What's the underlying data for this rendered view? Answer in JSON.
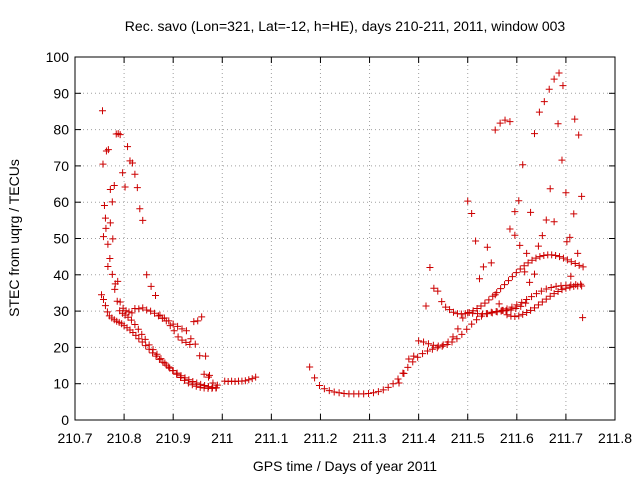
{
  "chart_data": {
    "type": "scatter",
    "title": "Rec. savo (Lon=321, Lat=-12, h=HE), days 210-211, 2011, window 003",
    "xlabel": "GPS time / Days of year 2011",
    "ylabel": "STEC from uqrg / TECUs",
    "xlim": [
      210.7,
      211.8
    ],
    "ylim": [
      0,
      100
    ],
    "xticks": [
      210.7,
      210.8,
      210.9,
      211.0,
      211.1,
      211.2,
      211.3,
      211.4,
      211.5,
      211.6,
      211.7,
      211.8
    ],
    "xtick_labels": [
      "210.7",
      "210.8",
      "210.9",
      "211",
      "211.1",
      "211.2",
      "211.3",
      "211.4",
      "211.5",
      "211.6",
      "211.7",
      "211.8"
    ],
    "yticks": [
      0,
      10,
      20,
      30,
      40,
      50,
      60,
      70,
      80,
      90,
      100
    ],
    "ytick_labels": [
      "0",
      "10",
      "20",
      "30",
      "40",
      "50",
      "60",
      "70",
      "80",
      "90",
      "100"
    ],
    "grid": true,
    "marker": "plus",
    "color": "#cc0000",
    "series": [
      {
        "x": [
          210.756,
          210.757,
          210.76,
          210.763,
          210.767,
          210.771,
          210.776,
          210.781,
          210.786,
          210.791,
          210.797,
          210.802,
          210.808,
          210.815,
          210.822,
          210.829,
          210.836,
          210.843,
          210.851,
          210.859,
          210.867,
          210.875,
          210.883,
          210.891,
          210.899,
          210.907,
          210.915,
          210.923,
          210.931,
          210.939,
          210.947,
          210.955,
          210.963,
          210.971,
          210.979,
          210.987
        ],
        "y": [
          85.2,
          70.5,
          59.1,
          52.8,
          48.4,
          44.5,
          40.1,
          36.0,
          32.7,
          30.1,
          29.4,
          28.9,
          28.3,
          27.5,
          26.3,
          25.0,
          23.6,
          22.2,
          20.7,
          19.4,
          18.1,
          16.9,
          15.7,
          14.6,
          13.6,
          12.6,
          11.7,
          10.9,
          10.2,
          9.7,
          9.3,
          9.0,
          8.8,
          8.7,
          8.7,
          8.8
        ]
      },
      {
        "x": [
          210.754,
          210.758,
          210.762,
          210.766,
          210.77,
          210.775,
          210.78,
          210.785,
          210.79,
          210.795,
          210.8,
          210.806,
          210.812,
          210.818,
          210.824,
          210.83,
          210.837,
          210.844,
          210.851,
          210.858,
          210.865,
          210.872,
          210.879,
          210.886,
          210.893,
          210.9,
          210.908,
          210.916,
          210.924,
          210.932,
          210.94,
          210.948,
          210.956,
          210.964,
          210.972,
          210.98,
          210.988
        ],
        "y": [
          34.5,
          33.2,
          31.5,
          29.8,
          28.7,
          28.1,
          27.6,
          27.2,
          26.9,
          26.5,
          26.0,
          25.4,
          24.8,
          24.1,
          23.3,
          22.4,
          21.5,
          20.5,
          19.5,
          18.5,
          17.6,
          16.7,
          15.9,
          15.1,
          14.3,
          13.6,
          12.9,
          12.2,
          11.6,
          11.1,
          10.6,
          10.2,
          9.8,
          9.5,
          9.2,
          9.0,
          8.9
        ]
      },
      {
        "x": [
          210.764,
          210.768,
          210.772,
          210.776,
          210.78,
          210.784,
          210.788,
          210.792,
          210.797,
          210.802,
          210.807,
          210.812,
          210.817,
          210.822,
          210.827,
          210.832,
          210.838,
          210.846,
          210.855,
          210.864,
          210.873,
          210.882,
          210.891,
          210.9,
          210.909,
          210.918,
          210.927,
          210.936,
          210.945,
          210.954,
          210.963,
          210.972,
          210.981,
          210.99
        ],
        "y": [
          74.1,
          74.5,
          63.5,
          60.1,
          64.6,
          78.8,
          78.9,
          78.6,
          68.1,
          64.2,
          75.3,
          71.4,
          70.8,
          67.7,
          64.0,
          58.2,
          55.0,
          40.0,
          36.8,
          34.3,
          28.9,
          28.1,
          27.3,
          26.4,
          25.8,
          25.1,
          24.6,
          22.4,
          20.9,
          17.7,
          12.6,
          11.8,
          10.2,
          9.6
        ]
      },
      {
        "x": [
          210.758,
          210.762,
          210.767,
          210.772,
          210.777,
          210.782,
          210.787,
          210.792,
          210.798,
          210.804,
          210.81,
          210.816,
          210.822,
          210.83,
          210.838,
          210.846,
          210.854,
          210.862,
          210.87,
          210.878,
          210.886,
          210.894,
          210.902,
          210.91,
          210.918,
          210.926,
          210.934,
          210.942,
          210.95,
          210.958,
          210.966,
          210.974
        ],
        "y": [
          50.5,
          55.6,
          42.3,
          54.3,
          49.9,
          37.5,
          38.2,
          32.5,
          30.8,
          30.1,
          29.8,
          29.5,
          30.7,
          30.6,
          30.9,
          30.3,
          30.0,
          29.4,
          28.7,
          28.0,
          27.3,
          26.0,
          24.6,
          22.9,
          22.0,
          21.4,
          20.8,
          27.1,
          27.3,
          28.4,
          17.6,
          12.3
        ]
      },
      {
        "x": [
          211.005,
          211.012,
          211.019,
          211.026,
          211.033,
          211.04,
          211.047,
          211.054,
          211.061,
          211.068
        ],
        "y": [
          10.7,
          10.6,
          10.7,
          10.6,
          10.7,
          10.7,
          10.8,
          11.1,
          11.4,
          11.8
        ]
      },
      {
        "x": [
          211.178,
          211.188,
          211.198,
          211.208,
          211.218,
          211.228,
          211.238,
          211.248,
          211.258,
          211.268,
          211.278,
          211.288,
          211.298,
          211.308,
          211.318,
          211.328,
          211.338,
          211.348,
          211.358,
          211.368,
          211.378,
          211.388,
          211.398,
          211.408,
          211.418,
          211.428,
          211.438,
          211.448,
          211.458,
          211.468,
          211.478,
          211.488,
          211.498,
          211.508,
          211.518,
          211.528,
          211.538,
          211.548,
          211.558,
          211.568,
          211.578,
          211.588,
          211.598,
          211.608,
          211.618
        ],
        "y": [
          14.6,
          11.6,
          9.5,
          8.6,
          8.1,
          7.7,
          7.5,
          7.3,
          7.2,
          7.2,
          7.2,
          7.2,
          7.3,
          7.5,
          7.8,
          8.3,
          9.0,
          10.0,
          11.3,
          12.9,
          14.5,
          16.0,
          17.3,
          18.3,
          19.0,
          19.5,
          19.9,
          20.3,
          20.8,
          21.5,
          22.4,
          23.6,
          25.0,
          26.4,
          27.6,
          28.6,
          29.3,
          29.7,
          29.9,
          30.0,
          30.1,
          30.3,
          30.7,
          31.3,
          32.2
        ]
      },
      {
        "x": [
          211.36,
          211.37,
          211.38,
          211.39,
          211.4,
          211.41,
          211.42,
          211.43,
          211.44,
          211.45,
          211.46,
          211.47,
          211.48,
          211.49,
          211.5,
          211.51,
          211.52,
          211.53,
          211.54,
          211.55,
          211.56,
          211.57,
          211.58,
          211.59,
          211.6,
          211.61,
          211.62,
          211.63,
          211.64,
          211.65,
          211.66,
          211.67,
          211.68,
          211.69,
          211.7,
          211.71,
          211.72,
          211.73
        ],
        "y": [
          10.2,
          12.8,
          16.8,
          17.6,
          21.8,
          21.5,
          21.0,
          20.6,
          20.4,
          20.7,
          21.5,
          22.9,
          25.1,
          28.1,
          29.5,
          29.4,
          29.3,
          29.2,
          29.3,
          29.5,
          29.8,
          30.2,
          30.6,
          31.1,
          31.7,
          32.4,
          33.2,
          34.0,
          34.8,
          35.5,
          36.1,
          36.5,
          36.8,
          37.0,
          37.1,
          37.2,
          37.3,
          37.4
        ]
      },
      {
        "x": [
          211.415,
          211.423,
          211.431,
          211.439,
          211.447,
          211.455,
          211.463,
          211.471,
          211.479,
          211.487,
          211.495,
          211.503,
          211.511,
          211.519,
          211.527,
          211.535,
          211.543,
          211.551,
          211.559,
          211.567,
          211.575,
          211.583,
          211.591,
          211.599,
          211.607,
          211.615,
          211.623,
          211.631,
          211.639,
          211.647,
          211.655,
          211.663,
          211.671,
          211.679,
          211.687,
          211.695,
          211.703,
          211.711,
          211.719,
          211.727,
          211.735
        ],
        "y": [
          31.4,
          42.0,
          36.3,
          35.5,
          32.6,
          31.1,
          30.4,
          29.7,
          29.3,
          29.2,
          29.3,
          29.6,
          30.1,
          30.7,
          31.4,
          32.2,
          33.1,
          34.1,
          35.1,
          36.2,
          37.3,
          38.4,
          39.5,
          40.6,
          41.6,
          42.5,
          43.3,
          44.0,
          44.6,
          45.0,
          45.3,
          45.5,
          45.5,
          45.3,
          45.0,
          44.6,
          44.1,
          43.6,
          43.1,
          42.6,
          42.2
        ]
      },
      {
        "x": [
          211.5,
          211.508,
          211.516,
          211.524,
          211.532,
          211.54,
          211.548,
          211.556,
          211.564,
          211.572,
          211.58,
          211.588,
          211.596,
          211.604,
          211.612,
          211.62,
          211.628,
          211.636,
          211.644,
          211.652,
          211.66,
          211.668,
          211.676,
          211.684,
          211.692,
          211.7,
          211.708,
          211.716,
          211.724,
          211.732
        ],
        "y": [
          60.3,
          56.9,
          49.3,
          38.9,
          42.2,
          47.6,
          43.3,
          34.5,
          32.0,
          30.2,
          29.0,
          28.6,
          28.5,
          28.7,
          29.1,
          29.6,
          30.2,
          30.9,
          31.7,
          32.5,
          33.3,
          34.1,
          34.8,
          35.4,
          35.9,
          36.3,
          36.6,
          36.8,
          36.9,
          36.9
        ]
      },
      {
        "x": [
          211.556,
          211.566,
          211.576,
          211.586,
          211.596,
          211.604,
          211.612,
          211.62,
          211.628,
          211.636,
          211.644,
          211.652,
          211.66,
          211.668,
          211.676,
          211.684,
          211.692,
          211.7,
          211.708,
          211.716,
          211.724,
          211.732
        ],
        "y": [
          79.9,
          81.8,
          82.6,
          82.2,
          57.4,
          60.4,
          70.3,
          45.9,
          57.2,
          40.2,
          47.9,
          50.8,
          55.1,
          63.7,
          54.6,
          81.6,
          71.6,
          62.6,
          50.3,
          56.8,
          45.9,
          61.6
        ]
      },
      {
        "x": [
          211.586,
          211.596,
          211.606,
          211.616,
          211.626,
          211.636,
          211.646,
          211.656,
          211.666,
          211.676,
          211.686,
          211.694,
          211.702,
          211.71,
          211.718,
          211.726,
          211.734
        ],
        "y": [
          52.6,
          50.9,
          48.1,
          40.8,
          37.9,
          78.9,
          84.8,
          87.7,
          91.1,
          93.9,
          95.6,
          92.1,
          49.1,
          39.6,
          82.9,
          78.5,
          28.2
        ]
      }
    ]
  }
}
